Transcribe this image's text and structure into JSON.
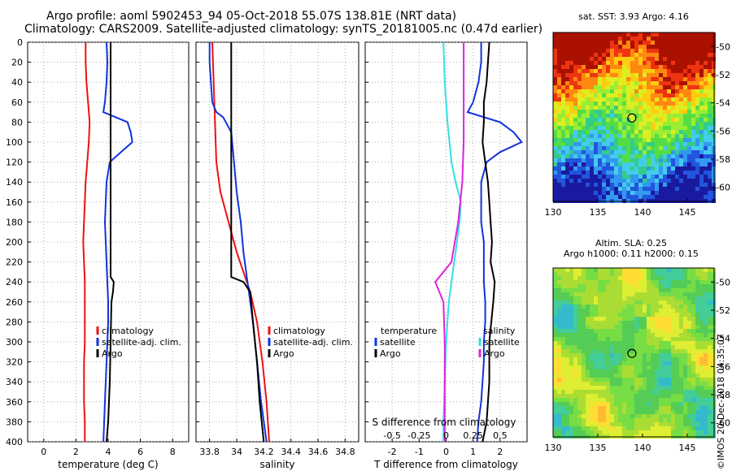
{
  "header": {
    "line1": "Argo profile: aoml 5902453_94 05-Oct-2018 55.07S 138.81E (NRT data)",
    "line2": "Climatology: CARS2009. Satellite-adjusted climatology: synTS_20181005.nc (0.47d earlier)"
  },
  "credit": "©IMOS 20-Dec-2018 04:35:07",
  "colors": {
    "climatology": "#ee1111",
    "satellite": "#1133dd",
    "argo": "#000000",
    "sat_salinity": "#33e0e0",
    "argo_salinity": "#dd22dd"
  },
  "chart_data": [
    {
      "type": "line",
      "id": "temperature",
      "xlabel": "temperature (deg C)",
      "ylabel": "",
      "xlim": [
        -1,
        9
      ],
      "ylim": [
        400,
        0
      ],
      "xticks": [
        0,
        2,
        4,
        6,
        8
      ],
      "xticklabels": [
        "0",
        "2",
        "4",
        "6",
        "8"
      ],
      "yticks": [
        0,
        20,
        40,
        60,
        80,
        100,
        120,
        140,
        160,
        180,
        200,
        220,
        240,
        260,
        280,
        300,
        320,
        340,
        360,
        380,
        400
      ],
      "grid": true,
      "legend": [
        "climatology",
        "satellite-adj. clim.",
        "Argo"
      ],
      "series": [
        {
          "name": "climatology",
          "color": "#ee1111",
          "points": [
            [
              2.6,
              0
            ],
            [
              2.6,
              20
            ],
            [
              2.65,
              40
            ],
            [
              2.75,
              60
            ],
            [
              2.85,
              80
            ],
            [
              2.8,
              100
            ],
            [
              2.7,
              120
            ],
            [
              2.6,
              140
            ],
            [
              2.55,
              160
            ],
            [
              2.5,
              180
            ],
            [
              2.45,
              200
            ],
            [
              2.5,
              220
            ],
            [
              2.55,
              240
            ],
            [
              2.55,
              260
            ],
            [
              2.55,
              280
            ],
            [
              2.55,
              300
            ],
            [
              2.5,
              320
            ],
            [
              2.5,
              340
            ],
            [
              2.5,
              360
            ],
            [
              2.55,
              380
            ],
            [
              2.55,
              400
            ]
          ]
        },
        {
          "name": "satellite-adj. clim.",
          "color": "#1133dd",
          "points": [
            [
              3.9,
              0
            ],
            [
              3.95,
              20
            ],
            [
              3.9,
              40
            ],
            [
              3.8,
              60
            ],
            [
              3.7,
              70
            ],
            [
              5.2,
              80
            ],
            [
              5.4,
              90
            ],
            [
              5.5,
              100
            ],
            [
              4.8,
              110
            ],
            [
              4.1,
              120
            ],
            [
              3.9,
              140
            ],
            [
              3.85,
              160
            ],
            [
              3.8,
              180
            ],
            [
              3.85,
              200
            ],
            [
              3.9,
              220
            ],
            [
              3.95,
              240
            ],
            [
              4.0,
              260
            ],
            [
              4.0,
              280
            ],
            [
              3.95,
              300
            ],
            [
              3.9,
              320
            ],
            [
              3.85,
              340
            ],
            [
              3.8,
              360
            ],
            [
              3.75,
              380
            ],
            [
              3.7,
              400
            ]
          ]
        },
        {
          "name": "Argo",
          "color": "#000000",
          "points": [
            [
              4.15,
              0
            ],
            [
              4.15,
              100
            ],
            [
              4.15,
              200
            ],
            [
              4.15,
              235
            ],
            [
              4.35,
              240
            ],
            [
              4.3,
              250
            ],
            [
              4.2,
              260
            ],
            [
              4.15,
              300
            ],
            [
              4.1,
              340
            ],
            [
              4.0,
              380
            ],
            [
              3.9,
              400
            ]
          ]
        }
      ]
    },
    {
      "type": "line",
      "id": "salinity",
      "xlabel": "salinity",
      "ylabel": "",
      "xlim": [
        33.7,
        34.9
      ],
      "ylim": [
        400,
        0
      ],
      "xticks": [
        33.8,
        34.0,
        34.2,
        34.4,
        34.6,
        34.8
      ],
      "xticklabels": [
        "33.8",
        "34",
        "34.2",
        "34.4",
        "34.6",
        "34.8"
      ],
      "grid": true,
      "legend": [
        "climatology",
        "satellite-adj. clim.",
        "Argo"
      ],
      "series": [
        {
          "name": "climatology",
          "color": "#ee1111",
          "points": [
            [
              33.82,
              0
            ],
            [
              33.83,
              40
            ],
            [
              33.84,
              80
            ],
            [
              33.85,
              120
            ],
            [
              33.88,
              150
            ],
            [
              33.92,
              170
            ],
            [
              33.96,
              190
            ],
            [
              34.0,
              210
            ],
            [
              34.05,
              230
            ],
            [
              34.1,
              250
            ],
            [
              34.15,
              280
            ],
            [
              34.19,
              320
            ],
            [
              34.22,
              360
            ],
            [
              34.24,
              400
            ]
          ]
        },
        {
          "name": "satellite-adj. clim.",
          "color": "#1133dd",
          "points": [
            [
              33.8,
              0
            ],
            [
              33.8,
              20
            ],
            [
              33.81,
              40
            ],
            [
              33.82,
              60
            ],
            [
              33.85,
              70
            ],
            [
              33.9,
              75
            ],
            [
              33.96,
              90
            ],
            [
              33.98,
              120
            ],
            [
              34.0,
              150
            ],
            [
              34.03,
              180
            ],
            [
              34.05,
              210
            ],
            [
              34.08,
              240
            ],
            [
              34.1,
              260
            ],
            [
              34.12,
              280
            ],
            [
              34.15,
              320
            ],
            [
              34.18,
              360
            ],
            [
              34.22,
              400
            ]
          ]
        },
        {
          "name": "Argo",
          "color": "#000000",
          "points": [
            [
              33.96,
              0
            ],
            [
              33.96,
              100
            ],
            [
              33.96,
              200
            ],
            [
              33.96,
              235
            ],
            [
              34.05,
              240
            ],
            [
              34.1,
              250
            ],
            [
              34.12,
              280
            ],
            [
              34.15,
              320
            ],
            [
              34.17,
              360
            ],
            [
              34.2,
              400
            ]
          ]
        }
      ]
    },
    {
      "type": "line",
      "id": "difference",
      "xlabel": "T difference from climatology",
      "xlabel_top": "S difference from climatology",
      "ylabel": "",
      "xlim": [
        -3,
        3
      ],
      "ylim": [
        400,
        0
      ],
      "xticks": [
        -2,
        -1,
        0,
        1,
        2
      ],
      "xticklabels": [
        "-2",
        "-1",
        "0",
        "1",
        "2"
      ],
      "s_ticklabels": [
        "-0.5",
        "-0.25",
        "0",
        "0.25",
        "0.5"
      ],
      "grid": true,
      "legend_left_title": "temperature",
      "legend_right_title": "salinity",
      "legend": [
        "satellite",
        "Argo"
      ],
      "series": [
        {
          "name": "T satellite",
          "color": "#1133dd",
          "points": [
            [
              1.3,
              0
            ],
            [
              1.3,
              20
            ],
            [
              1.2,
              40
            ],
            [
              1.0,
              60
            ],
            [
              0.8,
              70
            ],
            [
              2.0,
              80
            ],
            [
              2.5,
              90
            ],
            [
              2.8,
              100
            ],
            [
              2.0,
              110
            ],
            [
              1.5,
              120
            ],
            [
              1.3,
              140
            ],
            [
              1.3,
              160
            ],
            [
              1.3,
              180
            ],
            [
              1.4,
              200
            ],
            [
              1.4,
              220
            ],
            [
              1.4,
              240
            ],
            [
              1.45,
              260
            ],
            [
              1.45,
              280
            ],
            [
              1.4,
              300
            ],
            [
              1.4,
              320
            ],
            [
              1.35,
              340
            ],
            [
              1.3,
              360
            ],
            [
              1.2,
              380
            ],
            [
              1.15,
              400
            ]
          ]
        },
        {
          "name": "T Argo",
          "color": "#000000",
          "points": [
            [
              1.6,
              0
            ],
            [
              1.5,
              40
            ],
            [
              1.4,
              60
            ],
            [
              1.4,
              80
            ],
            [
              1.35,
              100
            ],
            [
              1.45,
              120
            ],
            [
              1.55,
              140
            ],
            [
              1.6,
              160
            ],
            [
              1.65,
              180
            ],
            [
              1.7,
              200
            ],
            [
              1.65,
              220
            ],
            [
              1.8,
              240
            ],
            [
              1.75,
              260
            ],
            [
              1.6,
              300
            ],
            [
              1.6,
              340
            ],
            [
              1.5,
              380
            ],
            [
              1.35,
              400
            ]
          ]
        },
        {
          "name": "S satellite",
          "color": "#33e0e0",
          "points": [
            [
              -0.1,
              0
            ],
            [
              -0.05,
              40
            ],
            [
              0.05,
              80
            ],
            [
              0.2,
              120
            ],
            [
              0.35,
              140
            ],
            [
              0.55,
              160
            ],
            [
              0.5,
              180
            ],
            [
              0.4,
              200
            ],
            [
              0.25,
              230
            ],
            [
              0.1,
              260
            ],
            [
              0.0,
              300
            ],
            [
              -0.05,
              340
            ],
            [
              -0.1,
              380
            ],
            [
              -0.1,
              400
            ]
          ]
        },
        {
          "name": "S Argo",
          "color": "#dd22dd",
          "points": [
            [
              0.65,
              0
            ],
            [
              0.65,
              60
            ],
            [
              0.65,
              100
            ],
            [
              0.6,
              140
            ],
            [
              0.45,
              180
            ],
            [
              0.2,
              220
            ],
            [
              -0.4,
              240
            ],
            [
              -0.1,
              260
            ],
            [
              -0.05,
              300
            ],
            [
              -0.05,
              350
            ],
            [
              -0.05,
              400
            ]
          ]
        }
      ]
    },
    {
      "type": "heatmap",
      "id": "sst-map",
      "title": "sat. SST: 3.93 Argo: 4.16",
      "xlim": [
        130,
        148
      ],
      "ylim": [
        -61,
        -49
      ],
      "xticks": [
        130,
        135,
        140,
        145
      ],
      "yticks": [
        -50,
        -52,
        -54,
        -56,
        -58,
        -60
      ],
      "argo_position": [
        138.81,
        -55.07
      ]
    },
    {
      "type": "heatmap",
      "id": "sla-map",
      "title": "Altim. SLA: 0.25",
      "subtitle": "Argo h1000: 0.11 h2000: 0.15",
      "xlim": [
        130,
        148
      ],
      "ylim": [
        -61,
        -49
      ],
      "xticks": [
        130,
        135,
        140,
        145
      ],
      "yticks": [
        -50,
        -52,
        -54,
        -56,
        -58,
        -60
      ],
      "argo_position": [
        138.81,
        -55.07
      ]
    }
  ]
}
